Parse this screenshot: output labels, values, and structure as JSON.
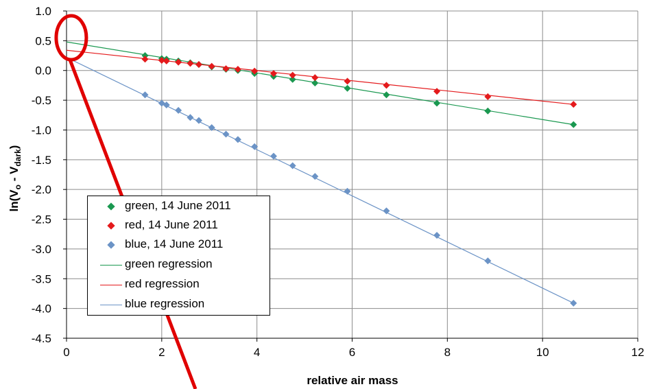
{
  "chart_data": {
    "type": "scatter",
    "title": "",
    "xlabel": "relative air mass",
    "ylabel": "ln(Vo - Vdark)",
    "ylabel_parts": {
      "prefix": "ln(V",
      "sub1": "o",
      "mid": " - V",
      "sub2": "dark",
      "suffix": ")"
    },
    "xlim": [
      0,
      12
    ],
    "ylim": [
      -4.5,
      1.0
    ],
    "x_ticks": [
      0,
      2,
      4,
      6,
      8,
      10,
      12
    ],
    "y_ticks": [
      1.0,
      0.5,
      0.0,
      -0.5,
      -1.0,
      -1.5,
      -2.0,
      -2.5,
      -3.0,
      -3.5,
      -4.0,
      -4.5
    ],
    "x_tick_labels": [
      "0",
      "2",
      "4",
      "6",
      "8",
      "10",
      "12"
    ],
    "y_tick_labels": [
      "1.0",
      "0.5",
      "0.0",
      "-0.5",
      "-1.0",
      "-1.5",
      "-2.0",
      "-2.5",
      "-3.0",
      "-3.5",
      "-4.0",
      "-4.5"
    ],
    "grid": true,
    "legend_position": "lower-left",
    "series": [
      {
        "name": "green, 14 June 2011",
        "color": "#1a9850",
        "marker": "diamond",
        "x": [
          1.65,
          2.0,
          2.1,
          2.35,
          2.6,
          2.78,
          3.05,
          3.35,
          3.6,
          3.95,
          4.35,
          4.75,
          5.22,
          5.9,
          6.72,
          7.78,
          8.85,
          10.65
        ],
        "y": [
          0.25,
          0.2,
          0.19,
          0.16,
          0.13,
          0.1,
          0.06,
          0.02,
          0.0,
          -0.05,
          -0.1,
          -0.15,
          -0.21,
          -0.3,
          -0.41,
          -0.55,
          -0.68,
          -0.91
        ]
      },
      {
        "name": "red, 14 June 2011",
        "color": "#e41a1c",
        "marker": "diamond",
        "x": [
          1.65,
          2.0,
          2.1,
          2.35,
          2.6,
          2.78,
          3.05,
          3.35,
          3.6,
          3.95,
          4.35,
          4.75,
          5.22,
          5.9,
          6.72,
          7.78,
          8.85,
          10.65
        ],
        "y": [
          0.19,
          0.17,
          0.16,
          0.14,
          0.12,
          0.1,
          0.07,
          0.03,
          0.02,
          -0.01,
          -0.05,
          -0.08,
          -0.12,
          -0.18,
          -0.25,
          -0.35,
          -0.44,
          -0.57
        ]
      },
      {
        "name": "blue, 14 June 2011",
        "color": "#6b93c6",
        "marker": "diamond",
        "x": [
          1.65,
          2.0,
          2.1,
          2.35,
          2.6,
          2.78,
          3.05,
          3.35,
          3.6,
          3.95,
          4.35,
          4.75,
          5.22,
          5.9,
          6.72,
          7.78,
          8.85,
          10.65
        ],
        "y": [
          -0.41,
          -0.55,
          -0.58,
          -0.67,
          -0.79,
          -0.84,
          -0.96,
          -1.07,
          -1.16,
          -1.28,
          -1.44,
          -1.6,
          -1.78,
          -2.03,
          -2.36,
          -2.77,
          -3.2,
          -3.91
        ]
      }
    ],
    "regressions": [
      {
        "name": "green regression",
        "color": "#1a9850",
        "x": [
          0,
          10.65
        ],
        "y": [
          0.48,
          -0.91
        ]
      },
      {
        "name": "red regression",
        "color": "#e41a1c",
        "x": [
          0,
          10.65
        ],
        "y": [
          0.34,
          -0.57
        ]
      },
      {
        "name": "blue regression",
        "color": "#6b93c6",
        "x": [
          0,
          10.65
        ],
        "y": [
          0.22,
          -3.91
        ]
      }
    ],
    "annotation": {
      "type": "ellipse-with-pointer",
      "color": "#e00000",
      "x": 0.1,
      "y": 0.55
    }
  }
}
